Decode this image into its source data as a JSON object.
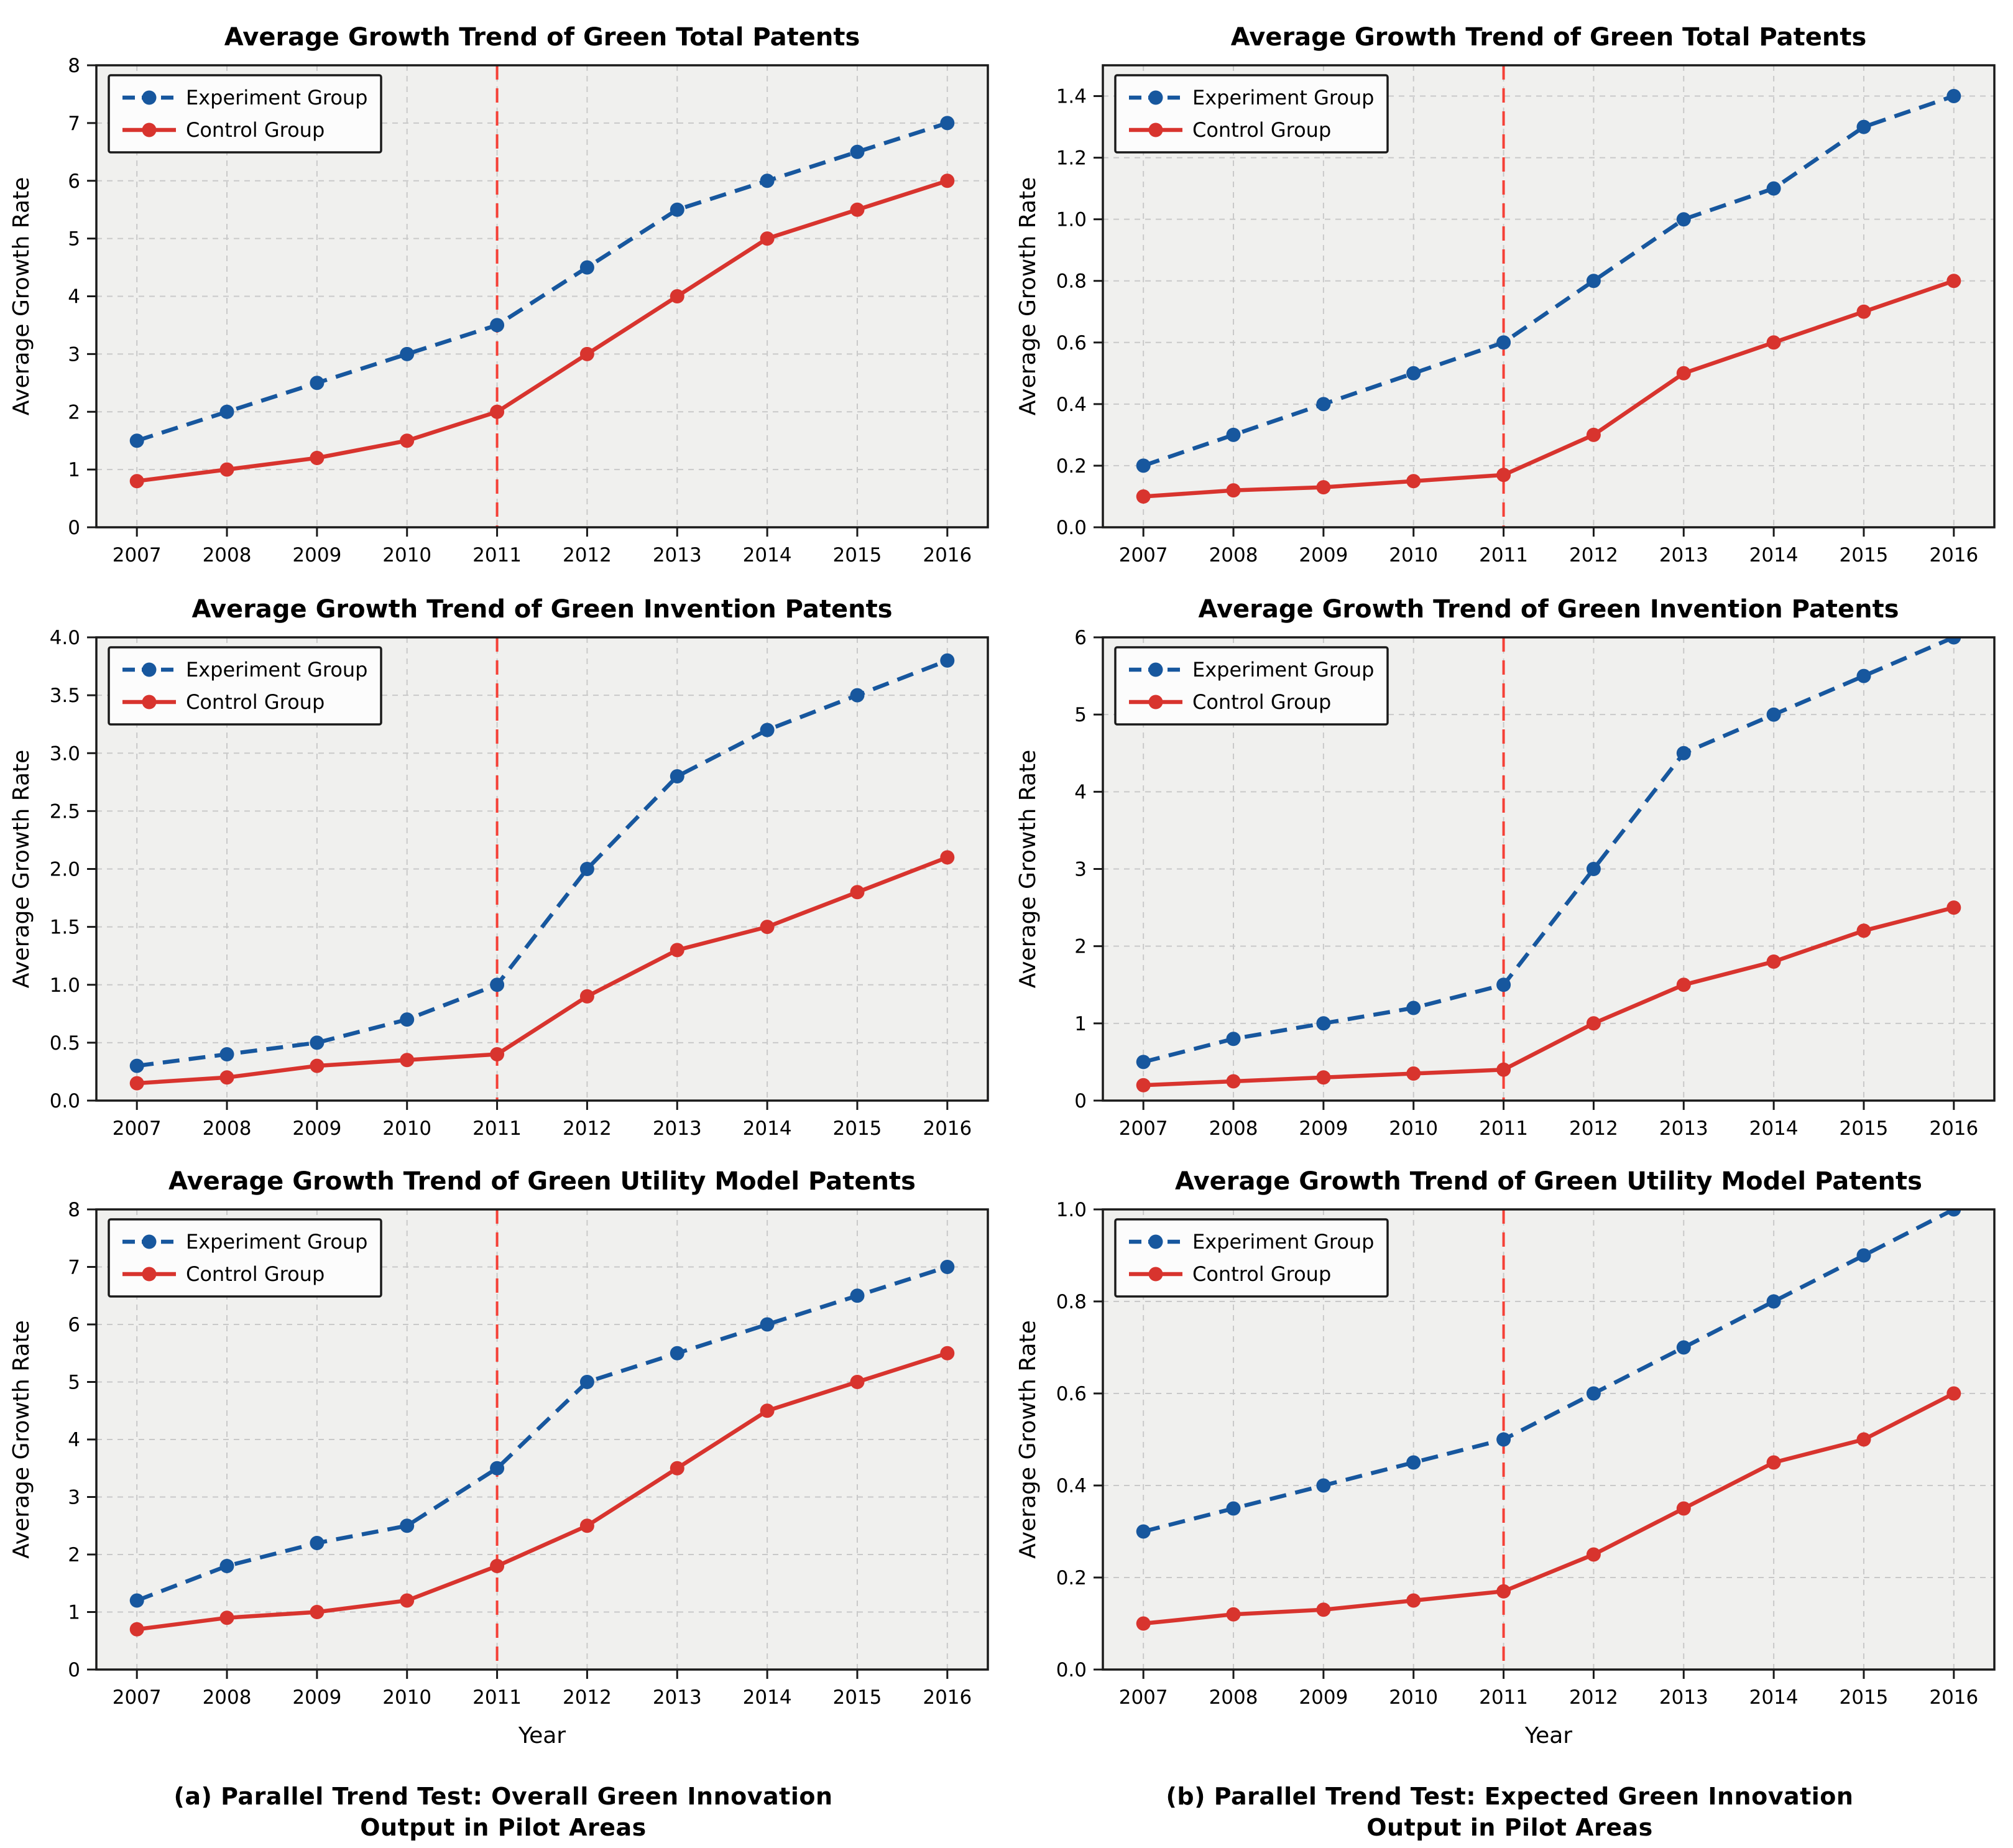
{
  "styles": {
    "experiment_color": "#17579e",
    "control_color": "#d8342e",
    "vline_color": "#f54036",
    "plot_bg": "#f0f0ee",
    "grid_color": "#c9c9c9",
    "spine_color": "#1a1a1a",
    "legend_bg": "#fcfcfc"
  },
  "legend": {
    "experiment_label": "Experiment Group",
    "control_label": "Control Group"
  },
  "captions": [
    {
      "text": "(a) Parallel Trend Test: Overall Green Innovation\nOutput in Pilot Areas"
    },
    {
      "text": "(b) Parallel Trend Test: Expected Green Innovation\nOutput in Pilot Areas"
    }
  ],
  "chart_data": [
    {
      "type": "line",
      "title": "Average Growth Trend of Green Total Patents",
      "ylabel": "Average Growth Rate",
      "xlabel": "",
      "x": [
        2007,
        2008,
        2009,
        2010,
        2011,
        2012,
        2013,
        2014,
        2015,
        2016
      ],
      "ylim": [
        0,
        8
      ],
      "yticks": [
        0,
        1,
        2,
        3,
        4,
        5,
        6,
        7,
        8
      ],
      "ytick_labels": [
        "0",
        "1",
        "2",
        "3",
        "4",
        "5",
        "6",
        "7",
        "8"
      ],
      "vline_x": 2011,
      "grid": true,
      "legend_position": "upper left",
      "series": [
        {
          "name": "Experiment Group",
          "style": "dashed",
          "color": "#17579e",
          "values": [
            1.5,
            2.0,
            2.5,
            3.0,
            3.5,
            4.5,
            5.5,
            6.0,
            6.5,
            7.0
          ]
        },
        {
          "name": "Control Group",
          "style": "solid",
          "color": "#d8342e",
          "values": [
            0.8,
            1.0,
            1.2,
            1.5,
            2.0,
            3.0,
            4.0,
            5.0,
            5.5,
            6.0
          ]
        }
      ]
    },
    {
      "type": "line",
      "title": "Average Growth Trend of Green Total Patents",
      "ylabel": "Average Growth Rate",
      "xlabel": "",
      "x": [
        2007,
        2008,
        2009,
        2010,
        2011,
        2012,
        2013,
        2014,
        2015,
        2016
      ],
      "ylim": [
        0,
        1.5
      ],
      "yticks": [
        0,
        0.2,
        0.4,
        0.6,
        0.8,
        1.0,
        1.2,
        1.4
      ],
      "ytick_labels": [
        "0.0",
        "0.2",
        "0.4",
        "0.6",
        "0.8",
        "1.0",
        "1.2",
        "1.4"
      ],
      "vline_x": 2011,
      "grid": true,
      "legend_position": "upper left",
      "series": [
        {
          "name": "Experiment Group",
          "style": "dashed",
          "color": "#17579e",
          "values": [
            0.2,
            0.3,
            0.4,
            0.5,
            0.6,
            0.8,
            1.0,
            1.1,
            1.3,
            1.4
          ]
        },
        {
          "name": "Control Group",
          "style": "solid",
          "color": "#d8342e",
          "values": [
            0.1,
            0.12,
            0.13,
            0.15,
            0.17,
            0.3,
            0.5,
            0.6,
            0.7,
            0.8
          ]
        }
      ]
    },
    {
      "type": "line",
      "title": "Average Growth Trend of Green Invention Patents",
      "ylabel": "Average Growth Rate",
      "xlabel": "",
      "x": [
        2007,
        2008,
        2009,
        2010,
        2011,
        2012,
        2013,
        2014,
        2015,
        2016
      ],
      "ylim": [
        0,
        4.0
      ],
      "yticks": [
        0,
        0.5,
        1.0,
        1.5,
        2.0,
        2.5,
        3.0,
        3.5,
        4.0
      ],
      "ytick_labels": [
        "0.0",
        "0.5",
        "1.0",
        "1.5",
        "2.0",
        "2.5",
        "3.0",
        "3.5",
        "4.0"
      ],
      "vline_x": 2011,
      "grid": true,
      "legend_position": "upper left",
      "series": [
        {
          "name": "Experiment Group",
          "style": "dashed",
          "color": "#17579e",
          "values": [
            0.3,
            0.4,
            0.5,
            0.7,
            1.0,
            2.0,
            2.8,
            3.2,
            3.5,
            3.8
          ]
        },
        {
          "name": "Control Group",
          "style": "solid",
          "color": "#d8342e",
          "values": [
            0.15,
            0.2,
            0.3,
            0.35,
            0.4,
            0.9,
            1.3,
            1.5,
            1.8,
            2.1
          ]
        }
      ]
    },
    {
      "type": "line",
      "title": "Average Growth Trend of Green Invention Patents",
      "ylabel": "Average Growth Rate",
      "xlabel": "",
      "x": [
        2007,
        2008,
        2009,
        2010,
        2011,
        2012,
        2013,
        2014,
        2015,
        2016
      ],
      "ylim": [
        0,
        6
      ],
      "yticks": [
        0,
        1,
        2,
        3,
        4,
        5,
        6
      ],
      "ytick_labels": [
        "0",
        "1",
        "2",
        "3",
        "4",
        "5",
        "6"
      ],
      "vline_x": 2011,
      "grid": true,
      "legend_position": "upper left",
      "series": [
        {
          "name": "Experiment Group",
          "style": "dashed",
          "color": "#17579e",
          "values": [
            0.5,
            0.8,
            1.0,
            1.2,
            1.5,
            3.0,
            4.5,
            5.0,
            5.5,
            6.0
          ]
        },
        {
          "name": "Control Group",
          "style": "solid",
          "color": "#d8342e",
          "values": [
            0.2,
            0.25,
            0.3,
            0.35,
            0.4,
            1.0,
            1.5,
            1.8,
            2.2,
            2.5
          ]
        }
      ]
    },
    {
      "type": "line",
      "title": "Average Growth Trend of Green Utility Model Patents",
      "ylabel": "Average Growth Rate",
      "xlabel": "Year",
      "x": [
        2007,
        2008,
        2009,
        2010,
        2011,
        2012,
        2013,
        2014,
        2015,
        2016
      ],
      "ylim": [
        0,
        8
      ],
      "yticks": [
        0,
        1,
        2,
        3,
        4,
        5,
        6,
        7,
        8
      ],
      "ytick_labels": [
        "0",
        "1",
        "2",
        "3",
        "4",
        "5",
        "6",
        "7",
        "8"
      ],
      "vline_x": 2011,
      "grid": true,
      "legend_position": "upper left",
      "series": [
        {
          "name": "Experiment Group",
          "style": "dashed",
          "color": "#17579e",
          "values": [
            1.2,
            1.8,
            2.2,
            2.5,
            3.5,
            5.0,
            5.5,
            6.0,
            6.5,
            7.0
          ]
        },
        {
          "name": "Control Group",
          "style": "solid",
          "color": "#d8342e",
          "values": [
            0.7,
            0.9,
            1.0,
            1.2,
            1.8,
            2.5,
            3.5,
            4.5,
            5.0,
            5.5
          ]
        }
      ]
    },
    {
      "type": "line",
      "title": "Average Growth Trend of Green Utility Model Patents",
      "ylabel": "Average Growth Rate",
      "xlabel": "Year",
      "x": [
        2007,
        2008,
        2009,
        2010,
        2011,
        2012,
        2013,
        2014,
        2015,
        2016
      ],
      "ylim": [
        0,
        1.0
      ],
      "yticks": [
        0,
        0.2,
        0.4,
        0.6,
        0.8,
        1.0
      ],
      "ytick_labels": [
        "0.0",
        "0.2",
        "0.4",
        "0.6",
        "0.8",
        "1.0"
      ],
      "vline_x": 2011,
      "grid": true,
      "legend_position": "upper left",
      "series": [
        {
          "name": "Experiment Group",
          "style": "dashed",
          "color": "#17579e",
          "values": [
            0.3,
            0.35,
            0.4,
            0.45,
            0.5,
            0.6,
            0.7,
            0.8,
            0.9,
            1.0
          ]
        },
        {
          "name": "Control Group",
          "style": "solid",
          "color": "#d8342e",
          "values": [
            0.1,
            0.12,
            0.13,
            0.15,
            0.17,
            0.25,
            0.35,
            0.45,
            0.5,
            0.6
          ]
        }
      ]
    }
  ]
}
